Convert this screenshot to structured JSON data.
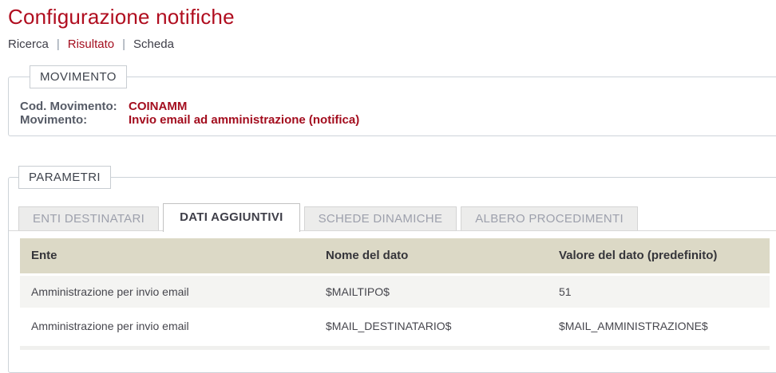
{
  "page": {
    "title": "Configurazione notifiche"
  },
  "breadcrumb": {
    "separator": "|",
    "items": [
      {
        "label": "Ricerca",
        "active": false
      },
      {
        "label": "Risultato",
        "active": true
      },
      {
        "label": "Scheda",
        "active": false
      }
    ]
  },
  "movimento": {
    "legend": "MOVIMENTO",
    "fields": [
      {
        "label": "Cod. Movimento:",
        "value": "COINAMM"
      },
      {
        "label": "Movimento:",
        "value": "Invio email ad amministrazione (notifica)"
      }
    ]
  },
  "parametri": {
    "legend": "PARAMETRI",
    "tabs": [
      {
        "label": "ENTI DESTINATARI",
        "active": false
      },
      {
        "label": "DATI AGGIUNTIVI",
        "active": true
      },
      {
        "label": "SCHEDE DINAMICHE",
        "active": false
      },
      {
        "label": "ALBERO PROCEDIMENTI",
        "active": false
      }
    ],
    "table": {
      "headers": [
        "Ente",
        "Nome del dato",
        "Valore del dato (predefinito)"
      ],
      "rows": [
        [
          "Amministrazione per invio email",
          "$MAILTIPO$",
          "51"
        ],
        [
          "Amministrazione per invio email",
          "$MAIL_DESTINATARIO$",
          "$MAIL_AMMINISTRAZIONE$"
        ]
      ]
    }
  },
  "colors": {
    "title_red": "#b00d1f",
    "accent_red": "#a30d1e",
    "breadcrumb_active": "#a40e1f",
    "label_gray": "#565b66",
    "fieldset_border": "#cdd3d9",
    "table_header_bg": "#dcd9c6",
    "row_alt_bg": "#f4f4f2",
    "tab_inactive_bg": "#ececeb",
    "tab_inactive_text": "#9da0ac"
  }
}
